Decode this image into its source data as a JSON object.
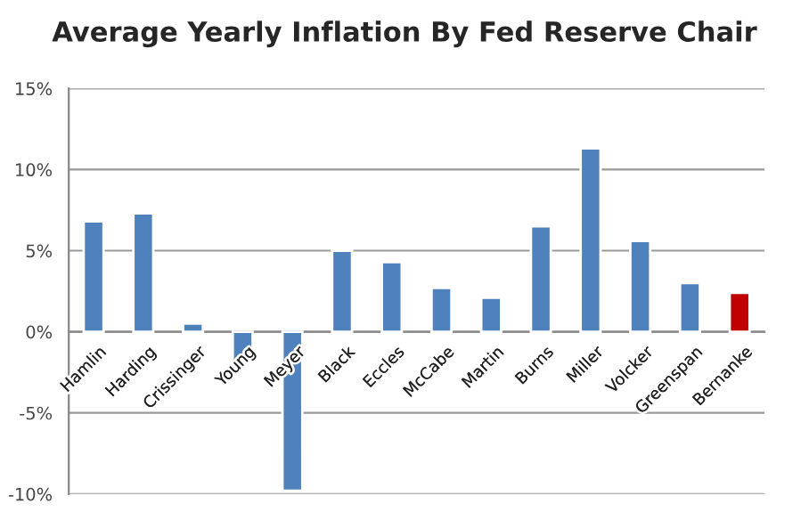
{
  "chart_data": {
    "type": "bar",
    "title": "Average Yearly Inflation By Fed Reserve Chair",
    "categories": [
      "Hamlin",
      "Harding",
      "Crissinger",
      "Young",
      "Meyer",
      "Black",
      "Eccles",
      "McCabe",
      "Martin",
      "Burns",
      "Miller",
      "Volcker",
      "Greenspan",
      "Bernanke"
    ],
    "values": [
      6.8,
      7.3,
      0.5,
      -1.8,
      -9.8,
      5.0,
      4.3,
      2.7,
      2.1,
      6.5,
      11.3,
      5.6,
      3.0,
      2.4
    ],
    "colors": [
      "#4f81bd",
      "#4f81bd",
      "#4f81bd",
      "#4f81bd",
      "#4f81bd",
      "#4f81bd",
      "#4f81bd",
      "#4f81bd",
      "#4f81bd",
      "#4f81bd",
      "#4f81bd",
      "#4f81bd",
      "#4f81bd",
      "#c00000"
    ],
    "ylim": [
      -10,
      15
    ],
    "yticks": [
      {
        "value": -10,
        "label": "-10%"
      },
      {
        "value": -5,
        "label": "-5%"
      },
      {
        "value": 0,
        "label": "0%"
      },
      {
        "value": 5,
        "label": "5%"
      },
      {
        "value": 10,
        "label": "10%"
      },
      {
        "value": 15,
        "label": "15%"
      }
    ],
    "grid": "y"
  }
}
